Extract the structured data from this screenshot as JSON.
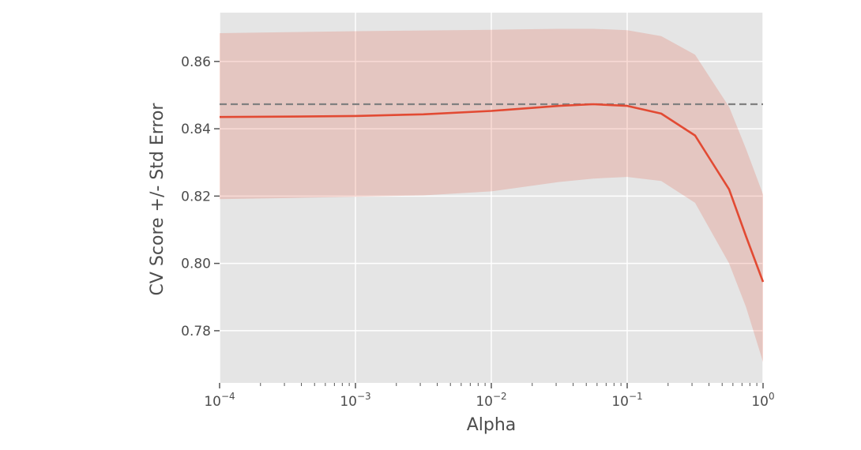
{
  "chart_data": {
    "type": "line",
    "title": "",
    "xlabel": "Alpha",
    "ylabel": "CV Score +/- Std Error",
    "xscale": "log",
    "xlim": [
      0.0001,
      1
    ],
    "ylim": [
      0.7645,
      0.8745
    ],
    "grid": true,
    "colors": {
      "line": "#E24A33",
      "band": "#E24A33",
      "reference": "#808080",
      "background": "#E5E5E5",
      "grid": "#FFFFFF"
    },
    "x_ticks": [
      {
        "value": 0.0001,
        "base": "10",
        "exp": "−4"
      },
      {
        "value": 0.001,
        "base": "10",
        "exp": "−3"
      },
      {
        "value": 0.01,
        "base": "10",
        "exp": "−2"
      },
      {
        "value": 0.1,
        "base": "10",
        "exp": "−1"
      },
      {
        "value": 1,
        "base": "10",
        "exp": "0"
      }
    ],
    "y_ticks": [
      {
        "value": 0.78,
        "label": "0.78"
      },
      {
        "value": 0.8,
        "label": "0.80"
      },
      {
        "value": 0.82,
        "label": "0.82"
      },
      {
        "value": 0.84,
        "label": "0.84"
      },
      {
        "value": 0.86,
        "label": "0.86"
      }
    ],
    "series": [
      {
        "kind": "mean_with_std_error_band",
        "x": [
          0.0001,
          0.000316,
          0.001,
          0.00316,
          0.01,
          0.0316,
          0.0562,
          0.1,
          0.178,
          0.316,
          0.562,
          0.75,
          1
        ],
        "y": [
          0.8435,
          0.8436,
          0.8438,
          0.8443,
          0.8453,
          0.8468,
          0.8473,
          0.8468,
          0.8445,
          0.838,
          0.822,
          0.808,
          0.7945
        ],
        "lower": [
          0.8191,
          0.8194,
          0.8198,
          0.8202,
          0.8214,
          0.8242,
          0.8252,
          0.8257,
          0.8245,
          0.818,
          0.8,
          0.787,
          0.7707
        ],
        "upper": [
          0.8684,
          0.8687,
          0.869,
          0.8692,
          0.8694,
          0.8697,
          0.8697,
          0.8693,
          0.8675,
          0.862,
          0.8465,
          0.834,
          0.8205
        ]
      },
      {
        "kind": "reference_line",
        "style": "dashed",
        "y": 0.8473
      }
    ]
  }
}
